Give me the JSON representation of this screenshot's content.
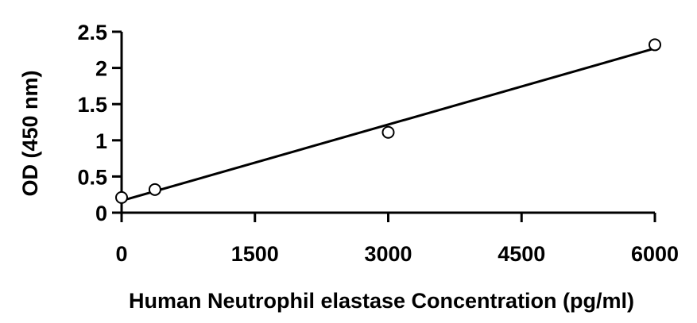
{
  "chart_data": {
    "type": "scatter",
    "title": "",
    "xlabel": "Human Neutrophil elastase Concentration (pg/ml)",
    "ylabel": "OD (450 nm)",
    "xlim": [
      0,
      6000
    ],
    "ylim": [
      0,
      2.5
    ],
    "x_ticks": [
      "0",
      "1500",
      "3000",
      "4500",
      "6000"
    ],
    "y_ticks": [
      "0",
      "0.5",
      "1",
      "1.5",
      "2",
      "2.5"
    ],
    "grid": false,
    "points": [
      {
        "x": 0,
        "y": 0.21
      },
      {
        "x": 375,
        "y": 0.32
      },
      {
        "x": 3000,
        "y": 1.11
      },
      {
        "x": 6000,
        "y": 2.32
      }
    ],
    "trendline": {
      "x": [
        0,
        6000
      ],
      "y": [
        0.165,
        2.27
      ]
    },
    "colors": {
      "marker_fill": "#ffffff",
      "stroke": "#000000"
    }
  }
}
